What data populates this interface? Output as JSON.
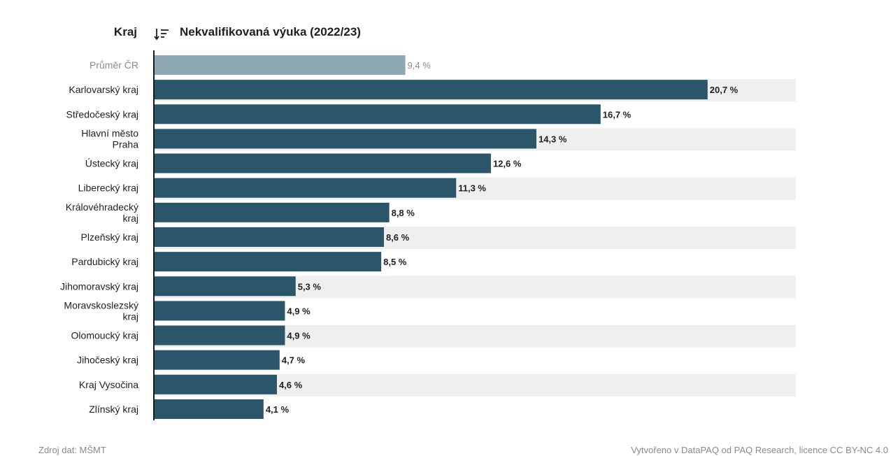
{
  "header": {
    "category_label": "Kraj",
    "metric_label": "Nekvalifikovaná výuka (2022/23)",
    "sort_icon": "sort-descending-icon"
  },
  "footer": {
    "source": "Zdroj dat: MŠMT",
    "credit": "Vytvořeno v DataPAQ od PAQ Research, licence CC BY-NC 4.0"
  },
  "colors": {
    "bar": "#2b5569",
    "average_bar": "#8ea8b5",
    "stripe": "#efefef",
    "axis": "#1a1a1a"
  },
  "chart_data": {
    "type": "bar",
    "orientation": "horizontal",
    "categories": [
      "Průměr ČR",
      "Karlovarský kraj",
      "Středočeský kraj",
      "Hlavní město Praha",
      "Ústecký kraj",
      "Liberecký kraj",
      "Královéhradecký kraj",
      "Plzeňský kraj",
      "Pardubický kraj",
      "Jihomoravský kraj",
      "Moravskoslezský kraj",
      "Olomoucký kraj",
      "Jihočeský kraj",
      "Kraj Vysočina",
      "Zlínský kraj"
    ],
    "values": [
      9.4,
      20.7,
      16.7,
      14.3,
      12.6,
      11.3,
      8.8,
      8.6,
      8.5,
      5.3,
      4.9,
      4.9,
      4.7,
      4.6,
      4.1
    ],
    "value_labels": [
      "9,4 %",
      "20,7 %",
      "16,7 %",
      "14,3 %",
      "12,6 %",
      "11,3 %",
      "8,8 %",
      "8,6 %",
      "8,5 %",
      "5,3 %",
      "4,9 %",
      "4,9 %",
      "4,7 %",
      "4,6 %",
      "4,1 %"
    ],
    "average_index": 0,
    "xlim": [
      0,
      24
    ],
    "grid": false,
    "legend": "none"
  }
}
